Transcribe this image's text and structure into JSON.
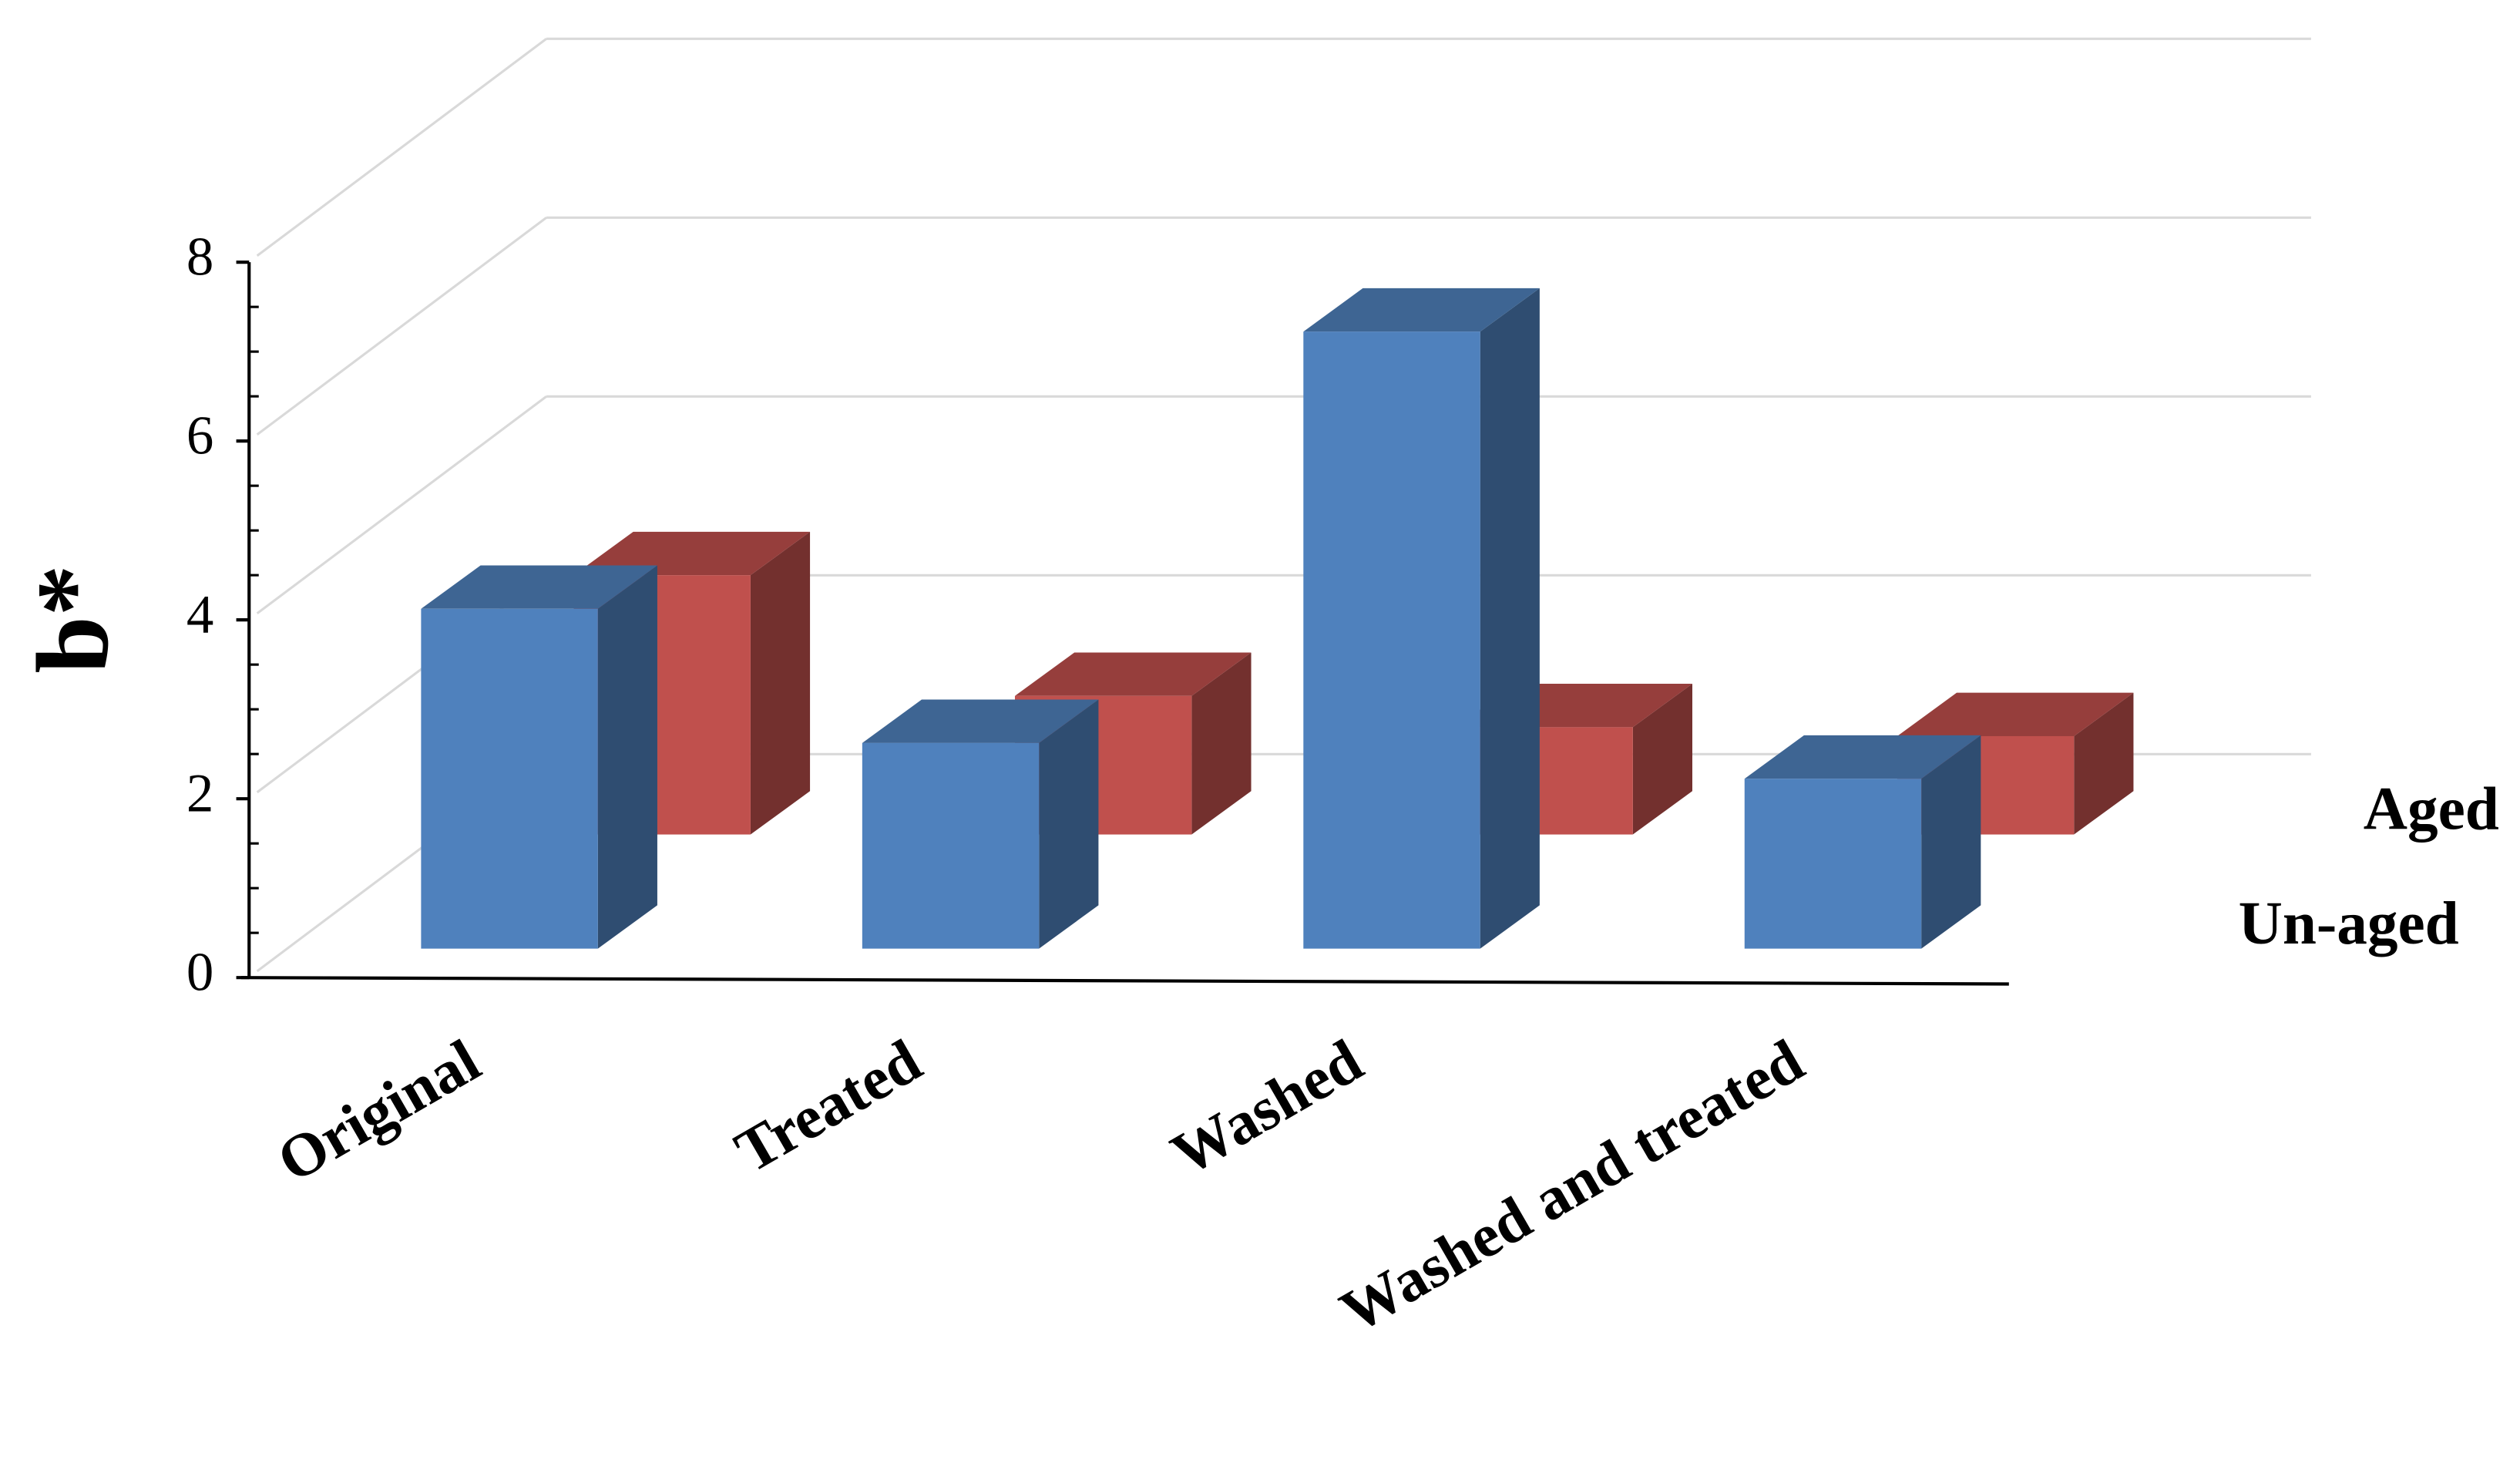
{
  "chart_data": {
    "type": "bar3d",
    "y_label": "b*",
    "categories": [
      "Original",
      "Treated",
      "Washed",
      "Washed and treated"
    ],
    "series": [
      {
        "name": "Un-aged",
        "color": "#4f81bd",
        "values": [
          3.8,
          2.3,
          6.9,
          1.9
        ]
      },
      {
        "name": "Aged",
        "color": "#c0504d",
        "values": [
          2.9,
          1.55,
          1.2,
          1.1
        ]
      }
    ],
    "ylim": [
      0,
      8
    ],
    "yticks": [
      0,
      2,
      4,
      6,
      8
    ],
    "grid": true
  }
}
